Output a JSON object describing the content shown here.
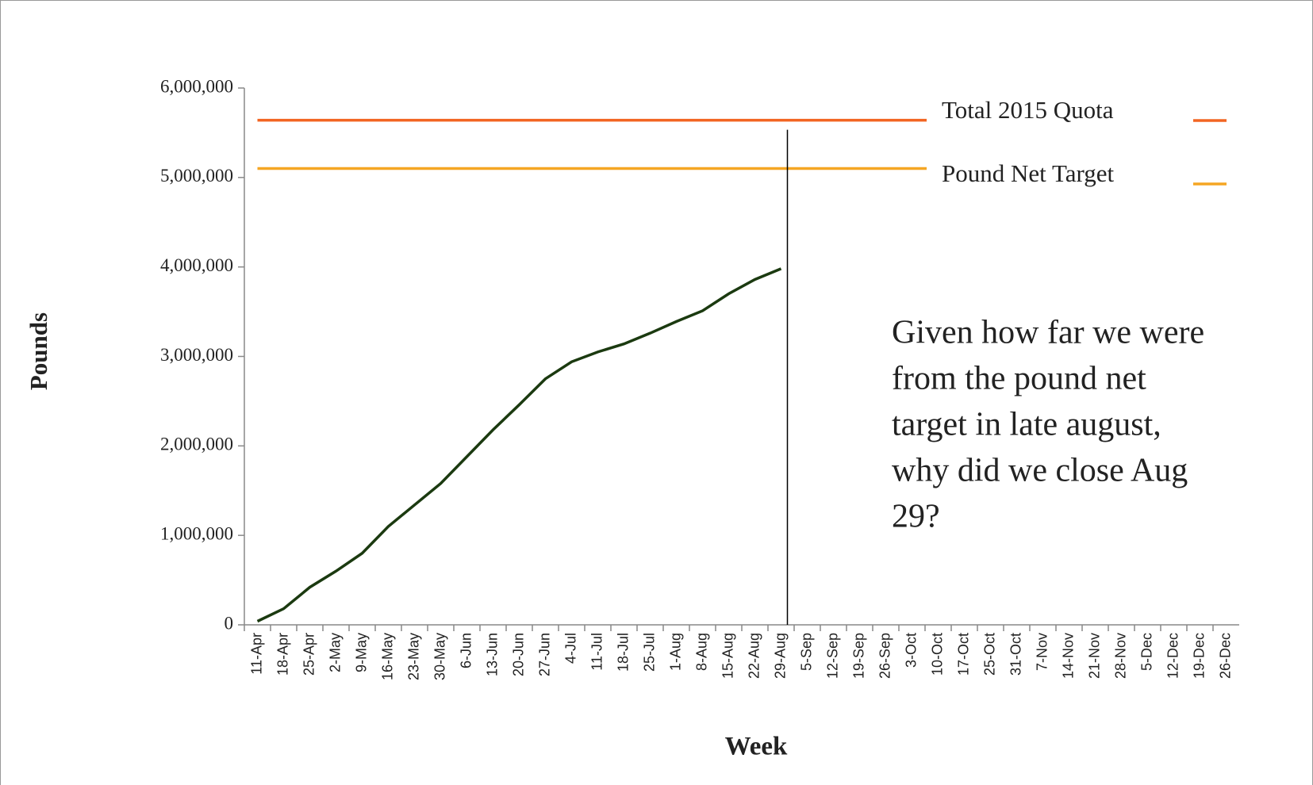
{
  "chart_data": {
    "type": "line",
    "y_label": "Pounds",
    "x_label": "Week",
    "categories": [
      "11-Apr",
      "18-Apr",
      "25-Apr",
      "2-May",
      "9-May",
      "16-May",
      "23-May",
      "30-May",
      "6-Jun",
      "13-Jun",
      "20-Jun",
      "27-Jun",
      "4-Jul",
      "11-Jul",
      "18-Jul",
      "25-Jul",
      "1-Aug",
      "8-Aug",
      "15-Aug",
      "22-Aug",
      "29-Aug",
      "5-Sep",
      "12-Sep",
      "19-Sep",
      "26-Sep",
      "3-Oct",
      "10-Oct",
      "17-Oct",
      "25-Oct",
      "31-Oct",
      "7-Nov",
      "14-Nov",
      "21-Nov",
      "28-Nov",
      "5-Dec",
      "12-Dec",
      "19-Dec",
      "26-Dec"
    ],
    "series": [
      {
        "color": "#1b3a10",
        "values": [
          40000,
          180000,
          420000,
          600000,
          800000,
          1100000,
          1340000,
          1580000,
          1880000,
          2180000,
          2460000,
          2750000,
          2940000,
          3050000,
          3140000,
          3260000,
          3390000,
          3510000,
          3700000,
          3860000,
          3980000,
          null,
          null,
          null,
          null,
          null,
          null,
          null,
          null,
          null,
          null,
          null,
          null,
          null,
          null,
          null,
          null,
          null
        ]
      },
      {
        "name": "Total 2015 Quota",
        "color": "#f26522",
        "values": [
          5640000,
          5640000,
          5640000,
          5640000,
          5640000,
          5640000,
          5640000,
          5640000,
          5640000,
          5640000,
          5640000,
          5640000,
          5640000,
          5640000,
          5640000,
          5640000,
          5640000,
          5640000,
          5640000,
          5640000,
          5640000,
          5640000,
          5640000,
          5640000,
          5640000,
          5640000,
          5640000,
          5640000,
          5640000,
          5640000,
          5640000,
          5640000,
          5640000,
          5640000,
          5640000,
          5640000,
          5640000,
          5640000
        ]
      },
      {
        "name": "Pound Net Target",
        "color": "#f5a623",
        "values": [
          5100000,
          5100000,
          5100000,
          5100000,
          5100000,
          5100000,
          5100000,
          5100000,
          5100000,
          5100000,
          5100000,
          5100000,
          5100000,
          5100000,
          5100000,
          5100000,
          5100000,
          5100000,
          5100000,
          5100000,
          5100000,
          5100000,
          5100000,
          5100000,
          5100000,
          5100000,
          5100000,
          5100000,
          5100000,
          5100000,
          5100000,
          5100000,
          5100000,
          5100000,
          5100000,
          5100000,
          5100000,
          5100000
        ]
      }
    ],
    "ylim": [
      0,
      6000000
    ],
    "yticks": [
      0,
      {
        "value": 1000000,
        "label": "1,000,000"
      },
      {
        "value": 2000000,
        "label": "2,000,000"
      },
      {
        "value": 3000000,
        "label": "3,000,000"
      },
      {
        "value": 4000000,
        "label": "4,000,000"
      },
      {
        "value": 5000000,
        "label": "5,000,000"
      },
      {
        "value": 6000000,
        "label": "6,000,000"
      }
    ],
    "annotation": [
      "Given how far we were",
      "from the pound net",
      "target in late august,",
      "why did we close Aug",
      "29?"
    ],
    "legend": "upper right"
  }
}
